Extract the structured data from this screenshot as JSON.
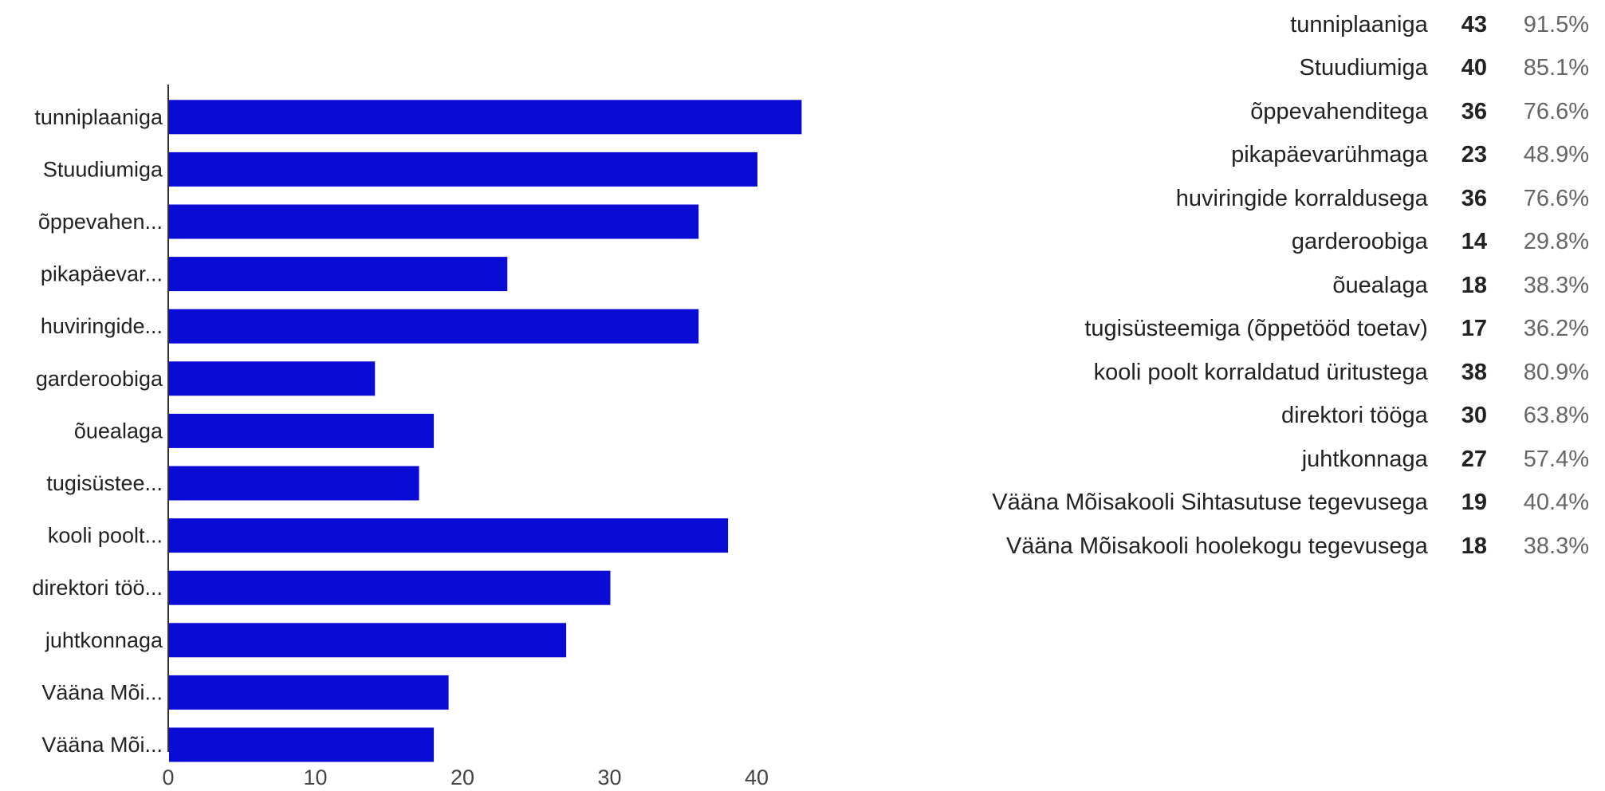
{
  "chart_data": {
    "type": "bar",
    "orientation": "horizontal",
    "categories": [
      "tunniplaaniga",
      "Stuudiumiga",
      "õppevahenditega",
      "pikapäevarühmaga",
      "huviringide korraldusega",
      "garderoobiga",
      "õuealaga",
      "tugisüsteemiga (õppetööd toetav)",
      "kooli poolt korraldatud üritustega",
      "direktori tööga",
      "juhtkonnaga",
      "Vääna Mõisakooli Sihtasutuse tegevusega",
      "Vääna Mõisakooli hoolekogu tegevusega"
    ],
    "axis_labels": [
      "tunniplaaniga",
      "Stuudiumiga",
      "õppevahen...",
      "pikapäevar...",
      "huviringide...",
      "garderoobiga",
      "õuealaga",
      "tugisüstee...",
      "kooli poolt...",
      "direktori töö...",
      "juhtkonnaga",
      "Vääna Mõi...",
      "Vääna Mõi..."
    ],
    "values": [
      43,
      40,
      36,
      23,
      36,
      14,
      18,
      17,
      38,
      30,
      27,
      19,
      18
    ],
    "percentages": [
      "91.5%",
      "85.1%",
      "76.6%",
      "48.9%",
      "76.6%",
      "29.8%",
      "38.3%",
      "36.2%",
      "80.9%",
      "63.8%",
      "57.4%",
      "40.4%",
      "38.3%"
    ],
    "xlim": [
      0,
      43
    ],
    "xticks": [
      0,
      10,
      20,
      30,
      40
    ],
    "bar_color": "#0b0bd6",
    "grid": false,
    "legend": "none"
  }
}
